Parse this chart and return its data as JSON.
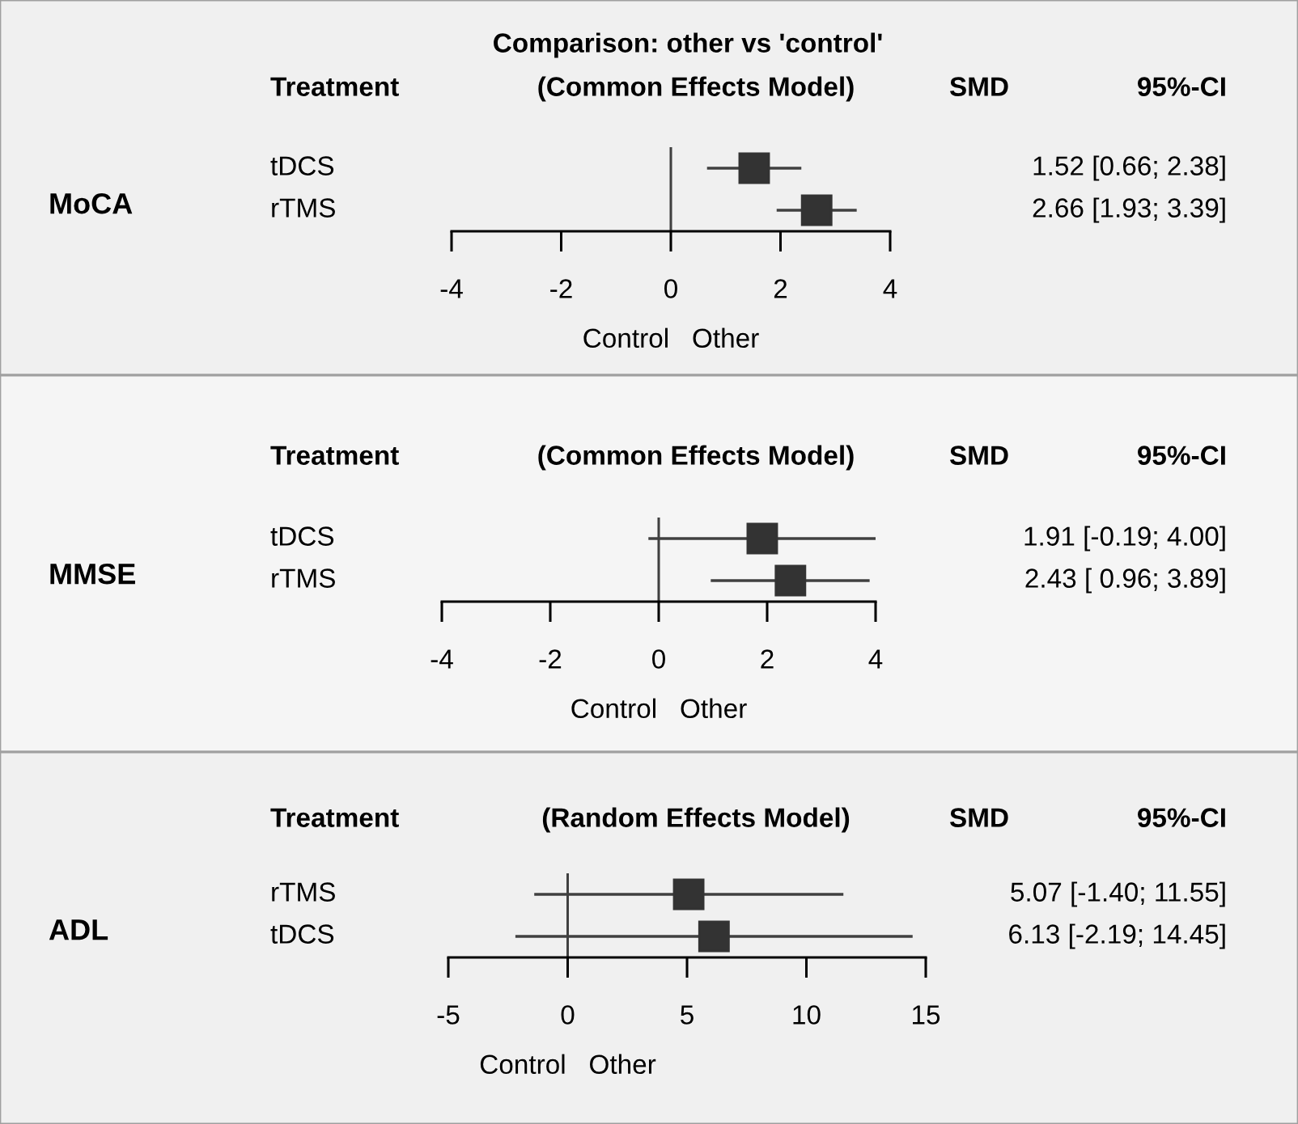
{
  "chart_data": [
    {
      "type": "scatter",
      "orientation": "horizontal",
      "title": "Comparison: other vs 'control'",
      "subtitle": "(Common Effects Model)",
      "ylabel": "MoCA",
      "xlabel": "Control   Other",
      "categories": [
        "tDCS",
        "rTMS"
      ],
      "values": [
        1.52,
        2.66
      ],
      "errors": [
        [
          0.66,
          2.38
        ],
        [
          1.93,
          3.39
        ]
      ],
      "value_labels": [
        "1.52 [0.66; 2.38]",
        "2.66 [1.93; 3.39]"
      ],
      "color": "#333333",
      "marker": "square",
      "xlim": [
        -4,
        4
      ],
      "xticks": [
        -4,
        -2,
        0,
        2,
        4
      ],
      "ref_lines": [
        {
          "axis": "x",
          "value": 0
        }
      ],
      "annotations": [
        "Treatment",
        "SMD",
        "95%-CI"
      ]
    },
    {
      "type": "scatter",
      "orientation": "horizontal",
      "subtitle": "(Common Effects Model)",
      "ylabel": "MMSE",
      "xlabel": "Control   Other",
      "categories": [
        "tDCS",
        "rTMS"
      ],
      "values": [
        1.91,
        2.43
      ],
      "errors": [
        [
          -0.19,
          4.0
        ],
        [
          0.96,
          3.89
        ]
      ],
      "value_labels": [
        "1.91 [-0.19; 4.00]",
        "2.43 [ 0.96; 3.89]"
      ],
      "color": "#333333",
      "marker": "square",
      "xlim": [
        -4,
        4
      ],
      "xticks": [
        -4,
        -2,
        0,
        2,
        4
      ],
      "ref_lines": [
        {
          "axis": "x",
          "value": 0
        }
      ],
      "annotations": [
        "Treatment",
        "SMD",
        "95%-CI"
      ]
    },
    {
      "type": "scatter",
      "orientation": "horizontal",
      "subtitle": "(Random Effects Model)",
      "ylabel": "ADL",
      "xlabel": "Control   Other",
      "categories": [
        "rTMS",
        "tDCS"
      ],
      "values": [
        5.07,
        6.13
      ],
      "errors": [
        [
          -1.4,
          11.55
        ],
        [
          -2.19,
          14.45
        ]
      ],
      "value_labels": [
        "5.07 [-1.40; 11.55]",
        "6.13 [-2.19; 14.45]"
      ],
      "color": "#333333",
      "marker": "square",
      "xlim": [
        -5,
        15
      ],
      "xticks": [
        -5,
        0,
        5,
        10,
        15
      ],
      "ref_lines": [
        {
          "axis": "x",
          "value": 0
        }
      ],
      "annotations": [
        "Treatment",
        "SMD",
        "95%-CI"
      ]
    }
  ]
}
